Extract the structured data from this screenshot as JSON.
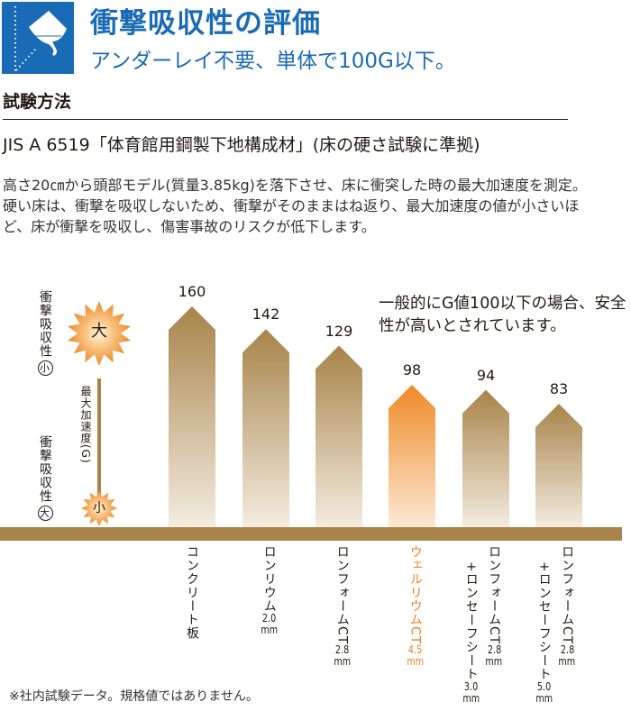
{
  "header": {
    "title": "衝撃吸収性の評価",
    "subtitle": "アンダーレイ不要、単体で100G以下。",
    "icon": "glass-falling-icon",
    "color": "#1a6bb5"
  },
  "method": {
    "heading": "試験方法",
    "standard": "JIS A 6519「体育館用鋼製下地構成材」(床の硬さ試験に準拠)",
    "description": "高さ20㎝から頭部モデル(質量3.85kg)を落下させ、床に衝突した時の最大加速度を測定。硬い床は、衝撃を吸収しないため、衝撃がそのままはね返り、最大加速度の値が小さいほど、床が衝撃を吸収し、傷害事故のリスクが低下します。"
  },
  "legend": {
    "absorb_small": "衝撃吸収性",
    "small": "小",
    "absorb_large": "衝撃吸収性",
    "large": "大",
    "axis": "最大加速度",
    "axis_unit": "(G)",
    "burst_big": "大",
    "burst_small": "小"
  },
  "chart_data": {
    "type": "bar",
    "ylabel": "最大加速度(G)",
    "annotation": "一般的にG値100以下の場合、安全性が高いとされています。",
    "categories": [
      {
        "name": "コンクリート板",
        "sub": "",
        "size": "",
        "size2": ""
      },
      {
        "name": "ロンリウム",
        "sub": "",
        "size": "2.0",
        "size2": ""
      },
      {
        "name": "ロンフォームCT",
        "sub": "",
        "size": "2.8",
        "size2": ""
      },
      {
        "name": "ウェルリウムCT",
        "sub": "",
        "size": "4.5",
        "size2": ""
      },
      {
        "name": "ロンフォームCT",
        "sub": "+ロンセーフシート",
        "size": "2.8",
        "size2": "3.0"
      },
      {
        "name": "ロンフォームCT",
        "sub": "+ロンセーフシート",
        "size": "2.8",
        "size2": "5.0"
      }
    ],
    "unit": "mm",
    "values": [
      160,
      142,
      129,
      98,
      94,
      83
    ],
    "highlight_index": 3,
    "colors": {
      "bar": "#a8844a",
      "highlight": "#ef8a28"
    }
  },
  "footnote": "※社内試験データ。規格値ではありません。"
}
